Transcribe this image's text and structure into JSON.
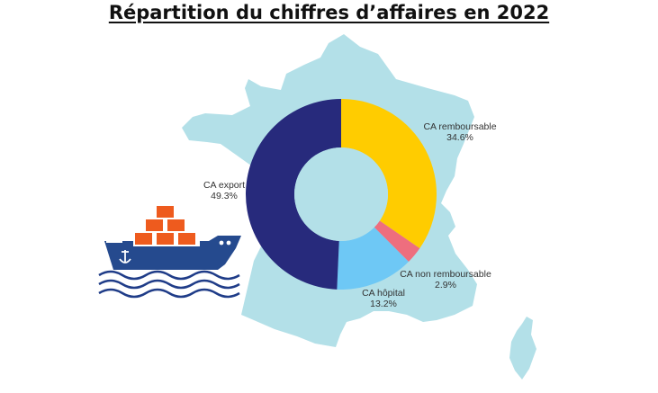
{
  "title": "Répartition du chiffres d’affaires en 2022",
  "colors": {
    "map": "#b3e0e8",
    "donut_hole": "#b3e0e8",
    "ship_hull": "#254a8e",
    "ship_boxes": "#ee5b1e",
    "waves": "#1f3c88"
  },
  "decorations": {
    "background_icon": "france-map-icon",
    "ship_icon": "cargo-ship-icon",
    "waves_icon": "waves-icon",
    "anchor_icon": "anchor-icon"
  },
  "chart_data": {
    "type": "pie",
    "subtype": "donut",
    "title": "Répartition du chiffres d’affaires en 2022",
    "start": "top, clockwise",
    "slices": [
      {
        "name": "CA remboursable",
        "value": 34.6,
        "label": "34.6%",
        "color": "#ffcc00"
      },
      {
        "name": "CA non remboursable",
        "value": 2.9,
        "label": "2.9%",
        "color": "#ee6e7e"
      },
      {
        "name": "CA hôpital",
        "value": 13.2,
        "label": "13.2%",
        "color": "#6ec8f5"
      },
      {
        "name": "CA export",
        "value": 49.3,
        "label": "49.3%",
        "color": "#272a7c"
      }
    ]
  }
}
